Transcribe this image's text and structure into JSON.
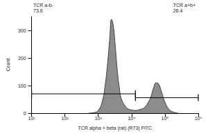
{
  "chart_data": {
    "type": "histogram",
    "x_label": "TCR alpha + beta (rat) (R73) FITC",
    "y_label": "Count",
    "x": [
      500,
      800,
      1000,
      1300,
      1600,
      1900,
      2200,
      2500,
      2800,
      3200,
      3700,
      4300,
      5000,
      6500,
      8000,
      10000,
      13000,
      16000,
      20000,
      25000,
      30000,
      38000,
      45000,
      55000,
      65000,
      80000,
      100000,
      130000,
      170000,
      250000
    ],
    "values": [
      0,
      3,
      10,
      40,
      100,
      180,
      270,
      340,
      320,
      250,
      160,
      90,
      50,
      25,
      15,
      12,
      10,
      12,
      15,
      22,
      35,
      60,
      90,
      110,
      105,
      75,
      40,
      15,
      5,
      0
    ],
    "color": "#8c8c8c",
    "log": "x",
    "xlim": [
      10,
      1000000
    ],
    "xticks": [
      {
        "value": 10,
        "label": "10¹"
      },
      {
        "value": 100,
        "label": "10²"
      },
      {
        "value": 1000,
        "label": "10³"
      },
      {
        "value": 10000,
        "label": "10⁴"
      },
      {
        "value": 100000,
        "label": "10⁵"
      },
      {
        "value": 1000000,
        "label": "10⁶"
      }
    ],
    "ylim": [
      0,
      350
    ],
    "yticks": [
      0,
      100,
      200,
      300
    ],
    "gates": [
      {
        "name": "TCR a-b-",
        "value": 73.6,
        "range": [
          10,
          13000
        ]
      },
      {
        "name": "TCR a+b+",
        "value": 26.4,
        "range": [
          13000,
          1000000
        ]
      }
    ]
  }
}
